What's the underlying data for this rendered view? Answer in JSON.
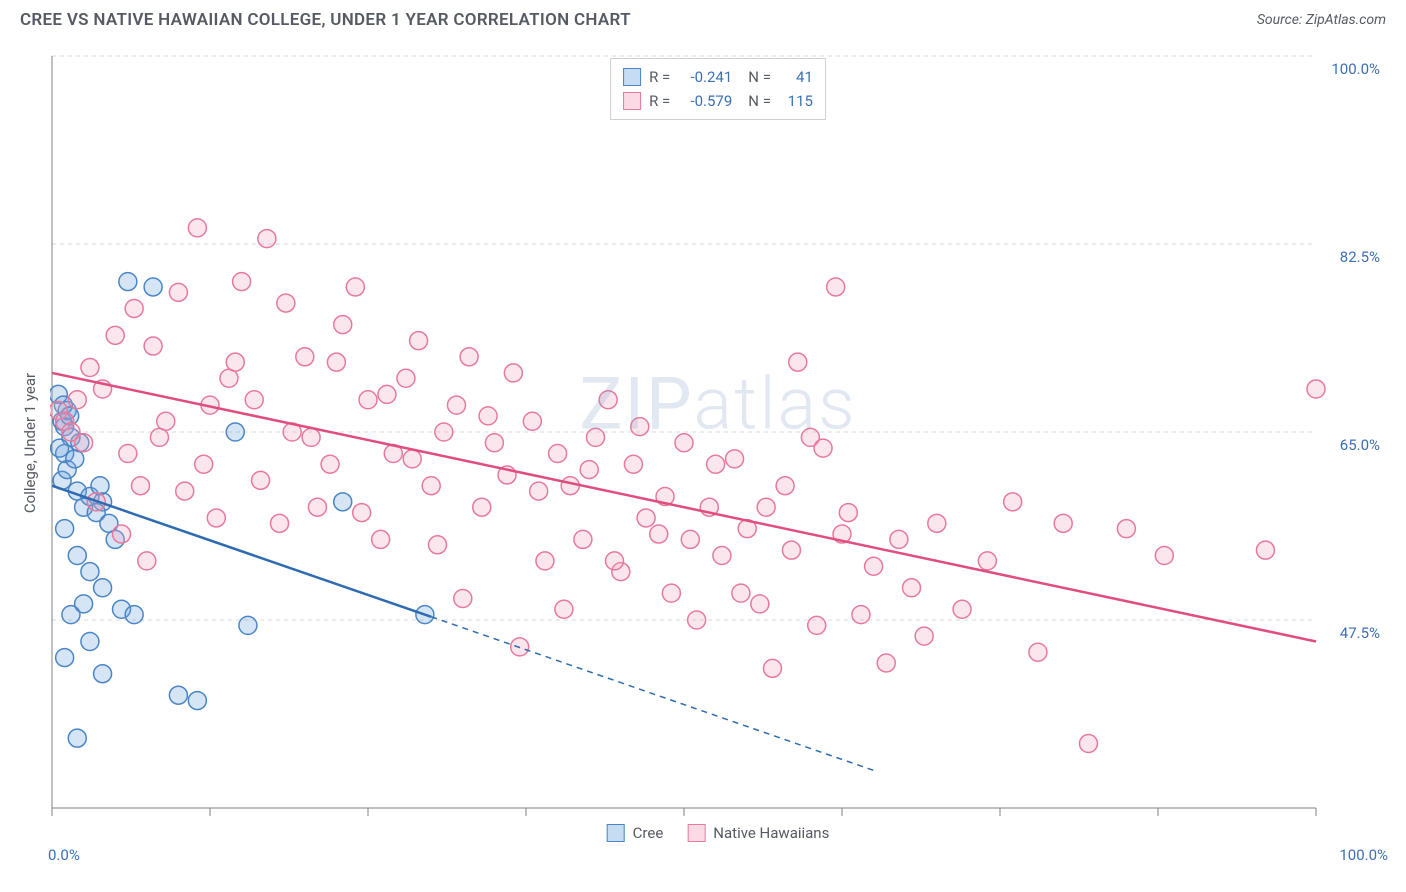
{
  "header": {
    "title": "CREE VS NATIVE HAWAIIAN COLLEGE, UNDER 1 YEAR CORRELATION CHART",
    "source": "Source: ZipAtlas.com"
  },
  "watermark": "ZIPatlas",
  "chart": {
    "type": "scatter",
    "y_axis_label": "College, Under 1 year",
    "background_color": "#ffffff",
    "grid_color": "#d8d8d8",
    "axis_color": "#808080",
    "tick_color": "#808080",
    "tick_label_color": "#3b6fb6",
    "xlim": [
      0,
      100
    ],
    "ylim": [
      30,
      100
    ],
    "x_ticks": [
      0,
      12.5,
      25,
      37.5,
      50,
      62.5,
      75,
      87.5,
      100
    ],
    "x_tick_labels_shown": {
      "0": "0.0%",
      "100": "100.0%"
    },
    "y_gridlines": [
      47.5,
      65.0,
      82.5,
      100.0
    ],
    "y_tick_labels": [
      "47.5%",
      "65.0%",
      "82.5%",
      "100.0%"
    ],
    "marker_radius": 9,
    "marker_stroke_width": 1.5,
    "marker_fill_opacity": 0.28,
    "trend_line_width": 2.5,
    "series": [
      {
        "name": "Cree",
        "color": "#6aa3dd",
        "stroke": "#4a86c5",
        "trend_color": "#2e6bb0",
        "R": "-0.241",
        "N": "41",
        "trendline": {
          "x1": 0,
          "y1": 60.0,
          "x2": 30,
          "y2": 47.8,
          "extrap_x2": 65,
          "extrap_y2": 33.5
        },
        "points": [
          [
            0.5,
            68.5
          ],
          [
            0.8,
            66.0
          ],
          [
            1.0,
            65.5
          ],
          [
            1.2,
            67.0
          ],
          [
            1.5,
            64.5
          ],
          [
            1.0,
            63.0
          ],
          [
            2.0,
            59.5
          ],
          [
            3.0,
            59.0
          ],
          [
            4.0,
            58.5
          ],
          [
            2.5,
            58.0
          ],
          [
            3.5,
            57.5
          ],
          [
            1.0,
            56.0
          ],
          [
            4.5,
            56.5
          ],
          [
            5.0,
            55.0
          ],
          [
            2.0,
            53.5
          ],
          [
            3.0,
            52.0
          ],
          [
            4.0,
            50.5
          ],
          [
            2.5,
            49.0
          ],
          [
            1.5,
            48.0
          ],
          [
            5.5,
            48.5
          ],
          [
            6.5,
            48.0
          ],
          [
            3.0,
            45.5
          ],
          [
            1.0,
            44.0
          ],
          [
            4.0,
            42.5
          ],
          [
            10.0,
            40.5
          ],
          [
            11.5,
            40.0
          ],
          [
            2.0,
            36.5
          ],
          [
            6.0,
            79.0
          ],
          [
            8.0,
            78.5
          ],
          [
            14.5,
            65.0
          ],
          [
            15.5,
            47.0
          ],
          [
            23.0,
            58.5
          ],
          [
            29.5,
            48.0
          ],
          [
            0.8,
            60.5
          ],
          [
            1.2,
            61.5
          ],
          [
            1.8,
            62.5
          ],
          [
            0.6,
            63.5
          ],
          [
            0.9,
            67.5
          ],
          [
            1.4,
            66.5
          ],
          [
            2.2,
            64.0
          ],
          [
            3.8,
            60.0
          ]
        ]
      },
      {
        "name": "Native Hawaiians",
        "color": "#f4a6bd",
        "stroke": "#e77a9c",
        "trend_color": "#e04d7e",
        "R": "-0.579",
        "N": "115",
        "trendline": {
          "x1": 0,
          "y1": 70.5,
          "x2": 100,
          "y2": 45.5
        },
        "points": [
          [
            0.5,
            67.0
          ],
          [
            1.0,
            66.0
          ],
          [
            1.5,
            65.0
          ],
          [
            2.0,
            68.0
          ],
          [
            2.5,
            64.0
          ],
          [
            3.0,
            71.0
          ],
          [
            5.0,
            74.0
          ],
          [
            6.0,
            63.0
          ],
          [
            7.0,
            60.0
          ],
          [
            8.0,
            73.0
          ],
          [
            9.0,
            66.0
          ],
          [
            10.0,
            78.0
          ],
          [
            11.5,
            84.0
          ],
          [
            12.0,
            62.0
          ],
          [
            13.0,
            57.0
          ],
          [
            14.0,
            70.0
          ],
          [
            15.0,
            79.0
          ],
          [
            16.0,
            68.0
          ],
          [
            17.0,
            83.0
          ],
          [
            18.5,
            77.0
          ],
          [
            19.0,
            65.0
          ],
          [
            20.0,
            72.0
          ],
          [
            21.0,
            58.0
          ],
          [
            22.0,
            62.0
          ],
          [
            23.0,
            75.0
          ],
          [
            24.0,
            78.5
          ],
          [
            25.0,
            68.0
          ],
          [
            26.0,
            55.0
          ],
          [
            27.0,
            63.0
          ],
          [
            28.0,
            70.0
          ],
          [
            29.0,
            73.5
          ],
          [
            30.0,
            60.0
          ],
          [
            31.0,
            65.0
          ],
          [
            32.0,
            67.5
          ],
          [
            33.0,
            72.0
          ],
          [
            34.0,
            58.0
          ],
          [
            35.0,
            64.0
          ],
          [
            36.0,
            61.0
          ],
          [
            37.0,
            45.0
          ],
          [
            38.0,
            66.0
          ],
          [
            39.0,
            53.0
          ],
          [
            40.0,
            63.0
          ],
          [
            41.0,
            60.0
          ],
          [
            42.0,
            55.0
          ],
          [
            43.0,
            64.5
          ],
          [
            44.0,
            68.0
          ],
          [
            45.0,
            52.0
          ],
          [
            46.0,
            62.0
          ],
          [
            47.0,
            57.0
          ],
          [
            48.0,
            55.5
          ],
          [
            49.0,
            50.0
          ],
          [
            50.0,
            64.0
          ],
          [
            51.0,
            47.5
          ],
          [
            52.0,
            58.0
          ],
          [
            53.0,
            53.5
          ],
          [
            54.0,
            62.5
          ],
          [
            55.0,
            56.0
          ],
          [
            56.0,
            49.0
          ],
          [
            57.0,
            43.0
          ],
          [
            58.0,
            60.0
          ],
          [
            59.0,
            71.5
          ],
          [
            60.0,
            64.5
          ],
          [
            61.0,
            63.5
          ],
          [
            62.0,
            78.5
          ],
          [
            63.0,
            57.5
          ],
          [
            64.0,
            48.0
          ],
          [
            65.0,
            52.5
          ],
          [
            66.0,
            43.5
          ],
          [
            67.0,
            55.0
          ],
          [
            68.0,
            50.5
          ],
          [
            69.0,
            46.0
          ],
          [
            70.0,
            56.5
          ],
          [
            72.0,
            48.5
          ],
          [
            74.0,
            53.0
          ],
          [
            76.0,
            58.5
          ],
          [
            78.0,
            44.5
          ],
          [
            80.0,
            56.5
          ],
          [
            82.0,
            36.0
          ],
          [
            85.0,
            56.0
          ],
          [
            88.0,
            53.5
          ],
          [
            96.0,
            54.0
          ],
          [
            100.0,
            69.0
          ],
          [
            4.0,
            69.0
          ],
          [
            6.5,
            76.5
          ],
          [
            8.5,
            64.5
          ],
          [
            10.5,
            59.5
          ],
          [
            12.5,
            67.5
          ],
          [
            14.5,
            71.5
          ],
          [
            16.5,
            60.5
          ],
          [
            18.0,
            56.5
          ],
          [
            20.5,
            64.5
          ],
          [
            22.5,
            71.5
          ],
          [
            24.5,
            57.5
          ],
          [
            26.5,
            68.5
          ],
          [
            28.5,
            62.5
          ],
          [
            30.5,
            54.5
          ],
          [
            32.5,
            49.5
          ],
          [
            34.5,
            66.5
          ],
          [
            36.5,
            70.5
          ],
          [
            38.5,
            59.5
          ],
          [
            40.5,
            48.5
          ],
          [
            42.5,
            61.5
          ],
          [
            44.5,
            53.0
          ],
          [
            46.5,
            65.5
          ],
          [
            48.5,
            59.0
          ],
          [
            50.5,
            55.0
          ],
          [
            52.5,
            62.0
          ],
          [
            54.5,
            50.0
          ],
          [
            56.5,
            58.0
          ],
          [
            58.5,
            54.0
          ],
          [
            60.5,
            47.0
          ],
          [
            62.5,
            55.5
          ],
          [
            5.5,
            55.5
          ],
          [
            7.5,
            53.0
          ],
          [
            3.5,
            58.5
          ]
        ]
      }
    ],
    "legend_top": [
      {
        "swatch_fill": "#c6dcf3",
        "swatch_stroke": "#4a86c5",
        "R": "-0.241",
        "N": "41"
      },
      {
        "swatch_fill": "#fbdae5",
        "swatch_stroke": "#e77a9c",
        "R": "-0.579",
        "N": "115"
      }
    ],
    "legend_bottom": [
      {
        "label": "Cree",
        "swatch_fill": "#c6dcf3",
        "swatch_stroke": "#4a86c5"
      },
      {
        "label": "Native Hawaiians",
        "swatch_fill": "#fbdae5",
        "swatch_stroke": "#e77a9c"
      }
    ]
  }
}
